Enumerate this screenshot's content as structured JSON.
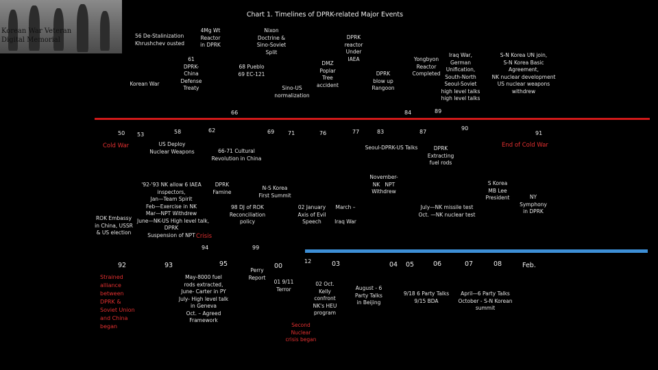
{
  "title": "Chart 1. Timelines of DPRK-related Major Events",
  "photo": {
    "caption_line1": "Korean War Veteran",
    "caption_line2": "Digital Memorial"
  },
  "upper_events": [
    "56 De-Stalinization\nKhrushchev ousted",
    "4Mg Wt\nReactor\nin DPRK",
    "Nixon\nDoctrine &\nSino-Soviet\nSplit",
    "DPRK\nreactor\nUnder\nIAEA",
    "61\nDPRK-\nChina\nDefense\nTreaty",
    "68 Pueblo\n69 EC-121",
    "DMZ\nPoplar\nTree\naccident",
    "Korean War",
    "Sino-US\nnormalization",
    "DPRK\nblow up\nRangoon",
    "Yongbyon\nReactor\nCompleted",
    "Iraq War,\nGerman\nUnification,\nSouth-North\nSeoul-Soviet\nhigh level talks\nhigh level talks",
    "S-N Korea UN join,\nS-N Korea Basic\nAgreement,\nNK nuclear development\nUS nuclear weapons\nwithdrew"
  ],
  "upper_years": [
    "66",
    "84",
    "89"
  ],
  "lower_years_1": [
    "50",
    "53",
    "58",
    "62",
    "69",
    "71",
    "76",
    "77",
    "83",
    "87",
    "90",
    "91"
  ],
  "cold_war": {
    "start": "Cold War",
    "end": "End of Cold War"
  },
  "mid_events": [
    "US Deploy\nNuclear Weapons",
    "66-71 Cultural\nRevolution in China",
    "Seoul-DPRK-US Talks",
    "DPRK\nExtracting\nfuel rods"
  ],
  "lower_events": [
    "'92-'93 NK allow 6 IAEA\ninspectors,\nJan—Team Spirit\nFeb—Exercise in NK\nMar—NPT Withdrew\nJune—NK-US High level talk,\nDPRK\nSuspension of NPT",
    "DPRK\nFamine",
    "N-S Korea\nFirst Summit",
    "November-\nNK   NPT\nWithdrew",
    "S Korea\nMB Lee\nPresident",
    "NY\nSymphony\nin DPRK",
    "ROK Embassy\nin China, USSR\n& US election",
    "98 DJ of ROK\nReconciliation\npolicy",
    "02 January\nAxis of Evil\nSpeech",
    "March –\n\nIraq War",
    "July—NK missile test\nOct. —NK nuclear test"
  ],
  "crisis": "Crisis",
  "crisis_years": [
    "94",
    "99"
  ],
  "bottom_years": [
    "92",
    "93",
    "95",
    "00",
    "03",
    "04",
    "05",
    "06",
    "07",
    "08",
    "Feb."
  ],
  "bottom_year_red": "12",
  "bottom_events": [
    "Strained\nalliance\nbetween\nDPRK &\nSoviet Union\nand China\nbegan",
    "May-8000 fuel\nrods extracted,\nJune- Carter in PY\nJuly- High level talk\nin Geneva\nOct. – Agreed\nFramework",
    "Perry\nReport",
    "01 9/11\nTerror",
    "02 Oct.\nKelly\nconfront\nNK's HEU\nprogram",
    "Second\nNuclear\ncrisis began",
    "August - 6\nParty Talks\nin Beijing",
    "9/18 6 Party Talks\n9/15 BDA",
    "April—6 Party Talks\nOctober - S-N Korean\nsummit"
  ]
}
